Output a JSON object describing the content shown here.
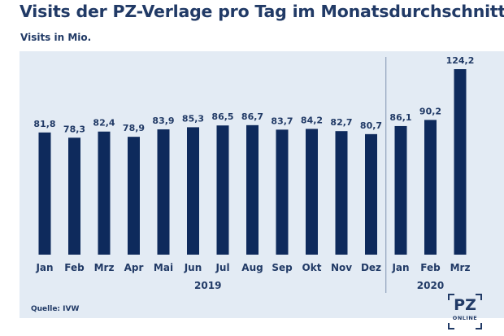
{
  "chart_data": {
    "type": "bar",
    "title": "Visits der PZ-Verlage pro Tag im Monatsdurchschnitt",
    "subtitle": "Visits in Mio.",
    "categories": [
      "Jan",
      "Feb",
      "Mrz",
      "Apr",
      "Mai",
      "Jun",
      "Jul",
      "Aug",
      "Sep",
      "Okt",
      "Nov",
      "Dez",
      "Jan",
      "Feb",
      "Mrz"
    ],
    "values": [
      81.8,
      78.3,
      82.4,
      78.9,
      83.9,
      85.3,
      86.5,
      86.7,
      83.7,
      84.2,
      82.7,
      80.7,
      86.1,
      90.2,
      124.2
    ],
    "value_labels": [
      "81,8",
      "78,3",
      "82,4",
      "78,9",
      "83,9",
      "85,3",
      "86,5",
      "86,7",
      "83,7",
      "84,2",
      "82,7",
      "80,7",
      "86,1",
      "90,2",
      "124,2"
    ],
    "groups": [
      {
        "label": "2019",
        "start": 0,
        "end": 11
      },
      {
        "label": "2020",
        "start": 12,
        "end": 14
      }
    ],
    "ylim": [
      0,
      124.2
    ],
    "grid": false,
    "bar_color": "#0e2a5c",
    "background_color": "#e3ebf4"
  },
  "footer": {
    "source": "Quelle: IVW"
  },
  "logo": {
    "main": "PZ",
    "sub": "ONLINE"
  }
}
